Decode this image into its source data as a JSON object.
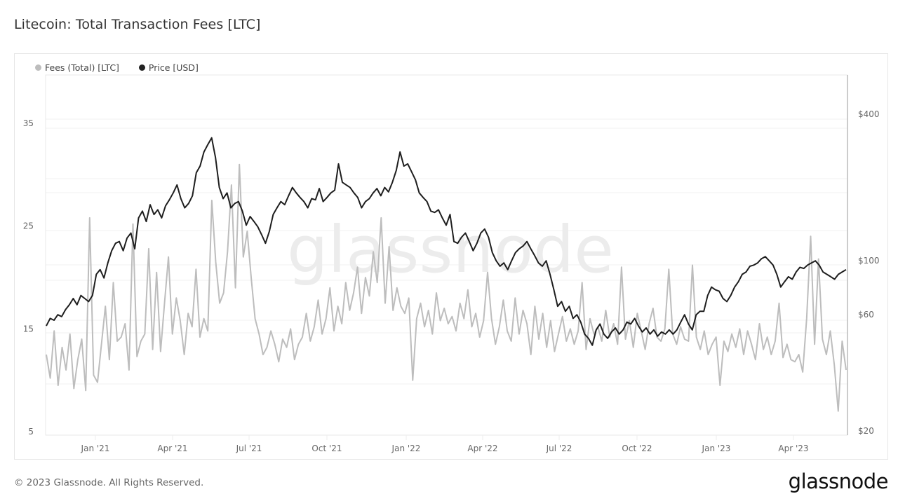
{
  "header": {
    "title": "Litecoin: Total Transaction Fees [LTC]"
  },
  "legend": [
    {
      "label": "Fees (Total) [LTC]",
      "color": "#b8b8b8"
    },
    {
      "label": "Price [USD]",
      "color": "#222222"
    }
  ],
  "footer": {
    "copyright": "© 2023 Glassnode. All Rights Reserved.",
    "brand": "glassnode",
    "watermark": "glassnode"
  },
  "colors": {
    "fees": "#bdbdbd",
    "price": "#1e1e1e",
    "grid": "#efefef",
    "axis_text": "#666666"
  },
  "chart_data": {
    "type": "line",
    "title": "Litecoin: Total Transaction Fees [LTC]",
    "xlabel": "",
    "ylabel_left": "Fees (Total) [LTC]",
    "ylabel_right": "Price [USD]",
    "x_ticks": [
      "Jan '21",
      "Apr '21",
      "Jul '21",
      "Oct '21",
      "Jan '22",
      "Apr '22",
      "Jul '22",
      "Oct '22",
      "Jan '23",
      "Apr '23"
    ],
    "y_left_ticks": [
      5,
      15,
      25,
      35
    ],
    "y_right_ticks": [
      "$20",
      "$60",
      "$100",
      "$400"
    ],
    "y_left_range": [
      5,
      35
    ],
    "y_right_range": [
      20,
      400
    ],
    "y_right_scale": "log",
    "legend_position": "top-left",
    "grid": true,
    "x_range": [
      "2020-11",
      "2023-05"
    ],
    "series": [
      {
        "name": "Fees (Total) [LTC]",
        "axis": "left",
        "values": [
          12.5,
          10.2,
          14.8,
          9.5,
          13.2,
          11.0,
          14.5,
          9.2,
          12.0,
          14.0,
          9.0,
          25.8,
          10.5,
          9.8,
          13.5,
          17.2,
          12.0,
          19.5,
          13.8,
          14.2,
          15.5,
          11.0,
          25.2,
          12.3,
          13.8,
          14.5,
          22.8,
          13.0,
          20.5,
          12.8,
          17.5,
          22.0,
          14.5,
          18.0,
          15.8,
          12.5,
          16.5,
          15.2,
          20.8,
          14.2,
          16.0,
          14.8,
          27.5,
          21.5,
          17.5,
          18.5,
          22.5,
          29.0,
          19.0,
          31.0,
          22.0,
          24.5,
          20.0,
          16.0,
          14.5,
          12.5,
          13.2,
          14.8,
          13.5,
          11.8,
          14.0,
          13.2,
          15.0,
          12.0,
          13.5,
          14.2,
          16.5,
          13.8,
          15.2,
          17.8,
          14.5,
          16.0,
          19.0,
          14.8,
          17.2,
          15.5,
          19.5,
          16.8,
          18.5,
          21.0,
          16.5,
          20.0,
          18.2,
          22.5,
          19.5,
          25.8,
          17.5,
          23.0,
          16.8,
          19.0,
          17.2,
          16.5,
          18.0,
          10.0,
          16.0,
          17.5,
          15.2,
          16.8,
          14.5,
          18.5,
          15.8,
          17.0,
          15.5,
          16.2,
          14.8,
          17.5,
          16.0,
          18.8,
          15.2,
          16.5,
          14.2,
          15.8,
          20.5,
          16.0,
          13.5,
          15.2,
          17.8,
          14.8,
          13.8,
          18.0,
          14.5,
          16.8,
          15.5,
          12.5,
          17.2,
          14.0,
          16.5,
          13.2,
          15.8,
          12.8,
          14.5,
          16.2,
          13.8,
          15.0,
          13.5,
          14.8,
          19.5,
          13.0,
          16.0,
          14.5,
          15.2,
          13.8,
          16.8,
          14.2,
          15.5,
          13.5,
          21.0,
          14.0,
          15.8,
          13.2,
          16.5,
          14.8,
          13.0,
          15.5,
          17.0,
          14.2,
          13.8,
          15.0,
          20.8,
          14.5,
          13.5,
          15.2,
          14.0,
          13.8,
          21.2,
          14.2,
          13.0,
          14.8,
          12.5,
          13.5,
          14.2,
          9.5,
          13.8,
          12.8,
          14.5,
          13.2,
          15.0,
          12.5,
          14.8,
          13.5,
          12.0,
          15.5,
          13.0,
          14.2,
          12.5,
          13.8,
          17.5,
          12.2,
          13.5,
          12.0,
          11.8,
          12.5,
          10.8,
          16.0,
          24.0,
          13.5,
          21.8,
          14.0,
          12.5,
          14.8,
          11.5,
          7.0,
          13.8,
          11.0
        ]
      },
      {
        "name": "Price [USD]",
        "axis": "right",
        "values": [
          54,
          58,
          57,
          60,
          59,
          63,
          66,
          70,
          66,
          72,
          70,
          68,
          72,
          88,
          92,
          85,
          98,
          110,
          118,
          120,
          110,
          124,
          130,
          112,
          150,
          160,
          145,
          170,
          155,
          162,
          150,
          168,
          178,
          190,
          205,
          180,
          165,
          172,
          185,
          230,
          245,
          280,
          300,
          320,
          265,
          200,
          180,
          190,
          165,
          172,
          175,
          160,
          140,
          152,
          145,
          138,
          128,
          118,
          132,
          155,
          165,
          175,
          170,
          185,
          200,
          190,
          182,
          175,
          165,
          180,
          178,
          198,
          175,
          182,
          190,
          195,
          250,
          210,
          205,
          200,
          190,
          182,
          165,
          175,
          180,
          190,
          198,
          185,
          200,
          192,
          210,
          235,
          280,
          245,
          250,
          232,
          215,
          190,
          182,
          175,
          160,
          158,
          162,
          150,
          140,
          155,
          120,
          118,
          125,
          130,
          120,
          110,
          118,
          130,
          135,
          125,
          108,
          100,
          95,
          98,
          92,
          100,
          108,
          112,
          115,
          120,
          112,
          105,
          98,
          95,
          100,
          88,
          76,
          65,
          68,
          62,
          65,
          58,
          60,
          56,
          50,
          48,
          45,
          52,
          55,
          50,
          48,
          51,
          53,
          50,
          52,
          56,
          55,
          58,
          54,
          51,
          53,
          50,
          52,
          49,
          51,
          50,
          52,
          50,
          52,
          56,
          60,
          55,
          52,
          60,
          62,
          62,
          72,
          78,
          76,
          75,
          70,
          68,
          72,
          78,
          82,
          88,
          90,
          95,
          96,
          98,
          102,
          104,
          100,
          96,
          88,
          78,
          82,
          86,
          84,
          90,
          94,
          93,
          96,
          98,
          100,
          96,
          90,
          88,
          86,
          84,
          88,
          90,
          92
        ]
      }
    ]
  }
}
